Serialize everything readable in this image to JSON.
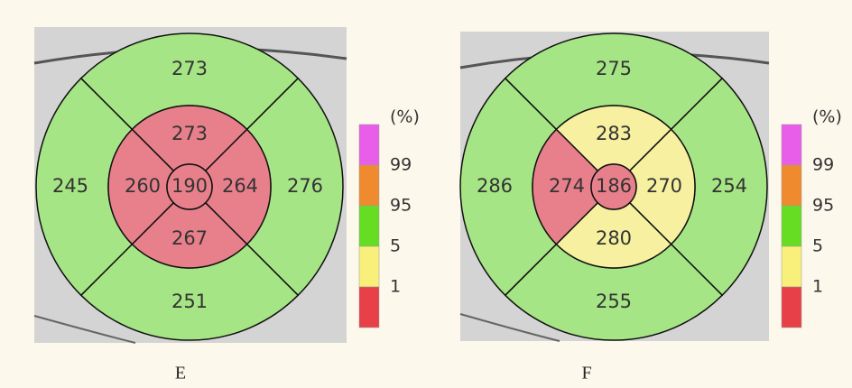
{
  "panels": [
    {
      "caption": "E",
      "center": {
        "value": "190",
        "color": "#e8808c"
      },
      "inner": [
        {
          "value": "273",
          "color": "#e8808c"
        },
        {
          "value": "264",
          "color": "#e8808c"
        },
        {
          "value": "267",
          "color": "#e8808c"
        },
        {
          "value": "260",
          "color": "#e8808c"
        }
      ],
      "outer": [
        {
          "value": "273",
          "color": "#a6e585"
        },
        {
          "value": "276",
          "color": "#a6e585"
        },
        {
          "value": "251",
          "color": "#a6e585"
        },
        {
          "value": "245",
          "color": "#a6e585"
        }
      ]
    },
    {
      "caption": "F",
      "center": {
        "value": "186",
        "color": "#e8808c"
      },
      "inner": [
        {
          "value": "283",
          "color": "#f6f0a0"
        },
        {
          "value": "270",
          "color": "#f6f0a0"
        },
        {
          "value": "280",
          "color": "#f6f0a0"
        },
        {
          "value": "274",
          "color": "#e8808c"
        }
      ],
      "outer": [
        {
          "value": "275",
          "color": "#a6e585"
        },
        {
          "value": "254",
          "color": "#a6e585"
        },
        {
          "value": "255",
          "color": "#a6e585"
        },
        {
          "value": "286",
          "color": "#a6e585"
        }
      ]
    }
  ],
  "scale": {
    "unit": "(%)",
    "colors": [
      "#e85ee8",
      "#f08a2e",
      "#66dd22",
      "#f8f07a",
      "#e84048"
    ],
    "labels": [
      "99",
      "95",
      "5",
      "1"
    ]
  }
}
